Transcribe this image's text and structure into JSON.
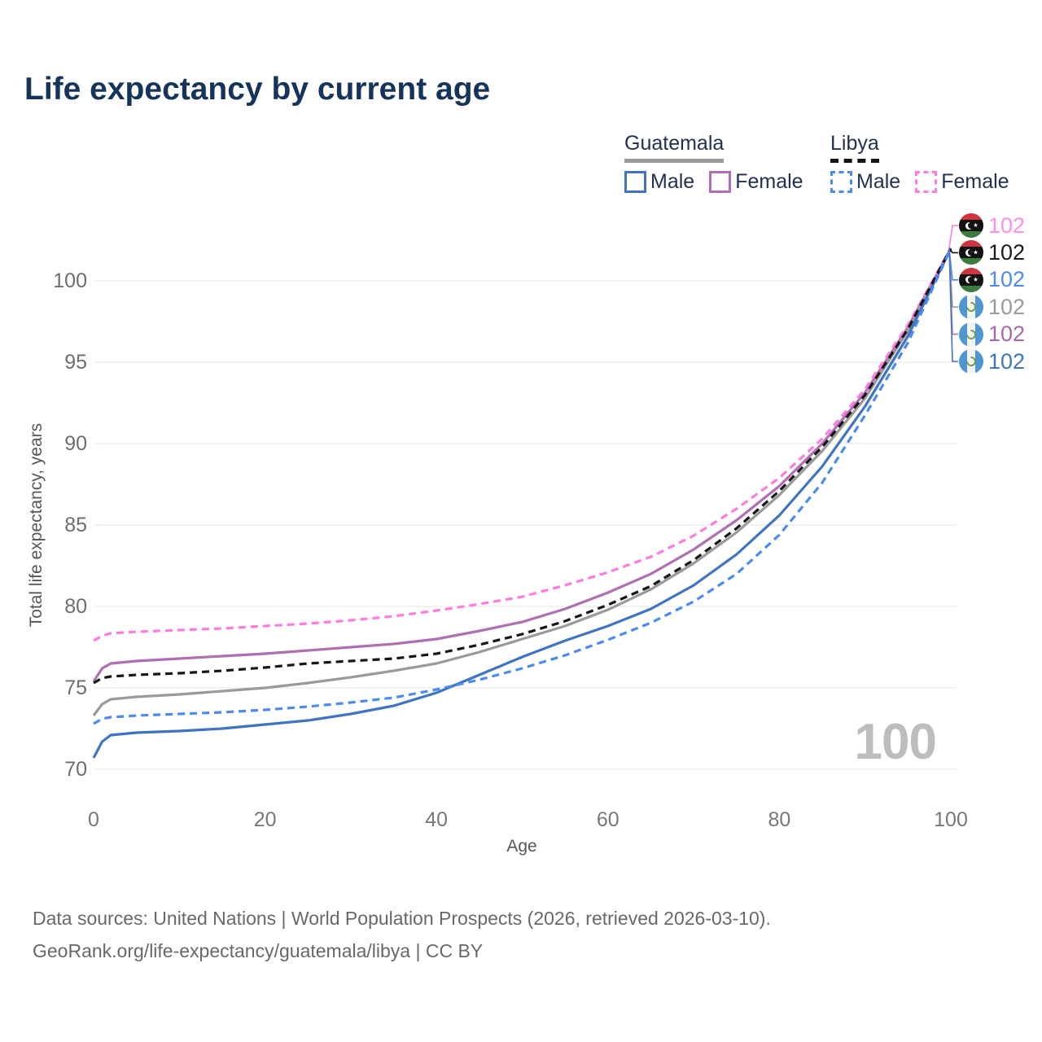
{
  "title": "Life expectancy by current age",
  "legend": {
    "guatemala": {
      "label": "Guatemala",
      "male": "Male",
      "female": "Female"
    },
    "libya": {
      "label": "Libya",
      "male": "Male",
      "female": "Female"
    }
  },
  "axes": {
    "y_label": "Total life expectancy, years",
    "x_label": "Age"
  },
  "watermark": "100",
  "footer": {
    "line1": "Data sources: United Nations | World Population Prospects (2026, retrieved 2026-03-10).",
    "line2": "GeoRank.org/life-expectancy/guatemala/libya | CC BY"
  },
  "colors": {
    "guatemala_male": "#3e74c2",
    "guatemala_female": "#b06fb2",
    "guatemala_both": "#9a9a9a",
    "libya_male": "#4b8bf0",
    "libya_female": "#ff7bdf",
    "libya_both": "#161616",
    "gridline": "#e9e9e9",
    "title_text": "#16335b",
    "watermark_text": "#bdbdbd"
  },
  "chart_data": {
    "type": "line",
    "title": "Life expectancy by current age",
    "xlabel": "Age",
    "ylabel": "Total life expectancy, years",
    "xlim": [
      0,
      100
    ],
    "ylim": [
      70,
      102
    ],
    "x_ticks": [
      0,
      20,
      40,
      60,
      80,
      100
    ],
    "y_ticks": [
      70,
      75,
      80,
      85,
      90,
      95,
      100
    ],
    "grid": "horizontal",
    "legend_position": "top-right",
    "ages": [
      0,
      1,
      2,
      5,
      10,
      15,
      20,
      25,
      30,
      35,
      40,
      45,
      50,
      55,
      60,
      65,
      70,
      75,
      80,
      85,
      90,
      95,
      100
    ],
    "series": [
      {
        "key": "guatemala_female",
        "name": "Guatemala Female",
        "country": "Guatemala",
        "sex": "Female",
        "color": "#b06fb2",
        "dash": false,
        "values": [
          75.4,
          76.2,
          76.5,
          76.65,
          76.8,
          76.95,
          77.1,
          77.3,
          77.5,
          77.7,
          78.0,
          78.5,
          79.05,
          79.85,
          80.85,
          82.0,
          83.5,
          85.3,
          87.4,
          90.0,
          93.15,
          97.15,
          102
        ]
      },
      {
        "key": "guatemala_both",
        "name": "Guatemala Both sexes",
        "country": "Guatemala",
        "sex": "Both",
        "color": "#9a9a9a",
        "dash": false,
        "values": [
          73.3,
          74.0,
          74.3,
          74.45,
          74.6,
          74.8,
          75.0,
          75.3,
          75.65,
          76.05,
          76.5,
          77.2,
          78.0,
          78.8,
          79.8,
          81.05,
          82.65,
          84.55,
          86.85,
          89.55,
          92.8,
          96.95,
          102
        ]
      },
      {
        "key": "guatemala_male",
        "name": "Guatemala Male",
        "country": "Guatemala",
        "sex": "Male",
        "color": "#3e74c2",
        "dash": false,
        "values": [
          70.7,
          71.7,
          72.1,
          72.25,
          72.35,
          72.5,
          72.75,
          73.0,
          73.4,
          73.9,
          74.7,
          75.8,
          76.9,
          77.9,
          78.8,
          79.85,
          81.3,
          83.2,
          85.6,
          88.6,
          92.3,
          96.6,
          102
        ]
      },
      {
        "key": "libya_female",
        "name": "Libya Female",
        "country": "Libya",
        "sex": "Female",
        "color": "#ff7bdf",
        "dash": true,
        "values": [
          77.9,
          78.2,
          78.35,
          78.45,
          78.55,
          78.65,
          78.8,
          78.95,
          79.15,
          79.4,
          79.75,
          80.15,
          80.6,
          81.3,
          82.1,
          83.05,
          84.35,
          86.0,
          87.9,
          90.3,
          93.35,
          97.3,
          102
        ]
      },
      {
        "key": "libya_both",
        "name": "Libya Both sexes",
        "country": "Libya",
        "sex": "Both",
        "color": "#161616",
        "dash": true,
        "values": [
          75.3,
          75.6,
          75.7,
          75.8,
          75.9,
          76.05,
          76.25,
          76.5,
          76.65,
          76.8,
          77.1,
          77.65,
          78.3,
          79.1,
          80.1,
          81.25,
          82.85,
          84.8,
          87.1,
          89.8,
          93.0,
          97.05,
          102
        ]
      },
      {
        "key": "libya_male",
        "name": "Libya Male",
        "country": "Libya",
        "sex": "Male",
        "color": "#4b8bf0",
        "dash": true,
        "values": [
          72.8,
          73.1,
          73.2,
          73.3,
          73.4,
          73.5,
          73.65,
          73.85,
          74.1,
          74.4,
          74.9,
          75.5,
          76.2,
          77.0,
          77.95,
          79.0,
          80.3,
          82.0,
          84.4,
          87.6,
          91.75,
          96.2,
          102
        ]
      }
    ],
    "end_labels": [
      {
        "flag": "libya",
        "series": "libya_female",
        "value": "102",
        "color": "#ff8fe3"
      },
      {
        "flag": "libya",
        "series": "libya_both",
        "value": "102",
        "color": "#1a1a1a"
      },
      {
        "flag": "libya",
        "series": "libya_male",
        "value": "102",
        "color": "#4b8bf0"
      },
      {
        "flag": "guatemala",
        "series": "guatemala_both",
        "value": "102",
        "color": "#9a9a9a"
      },
      {
        "flag": "guatemala",
        "series": "guatemala_female",
        "value": "102",
        "color": "#a869a8"
      },
      {
        "flag": "guatemala",
        "series": "guatemala_male",
        "value": "102",
        "color": "#3e74c2"
      }
    ]
  }
}
